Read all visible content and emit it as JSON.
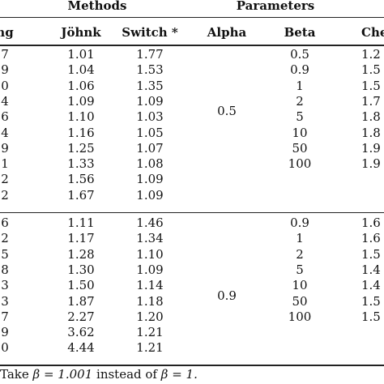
{
  "header": {
    "group_methods": "Methods",
    "group_parameters": "Parameters",
    "columns": [
      "ng",
      "Jöhnk",
      "Switch *",
      "Alpha",
      "Beta",
      "Che"
    ]
  },
  "block1": {
    "alpha": "0.5",
    "rows": [
      [
        "7",
        "1.01",
        "1.77",
        "0.5",
        "1.2"
      ],
      [
        "9",
        "1.04",
        "1.53",
        "0.9",
        "1.5"
      ],
      [
        "0",
        "1.06",
        "1.35",
        "1",
        "1.5"
      ],
      [
        "4",
        "1.09",
        "1.09",
        "2",
        "1.7"
      ],
      [
        "6",
        "1.10",
        "1.03",
        "5",
        "1.8"
      ],
      [
        "4",
        "1.16",
        "1.05",
        "10",
        "1.8"
      ],
      [
        "9",
        "1.25",
        "1.07",
        "50",
        "1.9"
      ],
      [
        "1",
        "1.33",
        "1.08",
        "100",
        "1.9"
      ],
      [
        "2",
        "1.56",
        "1.09",
        "",
        ""
      ],
      [
        "2",
        "1.67",
        "1.09",
        "",
        ""
      ]
    ]
  },
  "block2": {
    "alpha": "0.9",
    "rows": [
      [
        "6",
        "1.11",
        "1.46",
        "0.9",
        "1.6"
      ],
      [
        "2",
        "1.17",
        "1.34",
        "1",
        "1.6"
      ],
      [
        "5",
        "1.28",
        "1.10",
        "2",
        "1.5"
      ],
      [
        "8",
        "1.30",
        "1.09",
        "5",
        "1.4"
      ],
      [
        "3",
        "1.50",
        "1.14",
        "10",
        "1.4"
      ],
      [
        "3",
        "1.87",
        "1.18",
        "50",
        "1.5"
      ],
      [
        "7",
        "2.27",
        "1.20",
        "100",
        "1.5"
      ],
      [
        "9",
        "3.62",
        "1.21",
        "",
        ""
      ],
      [
        "0",
        "4.44",
        "1.21",
        "",
        ""
      ]
    ]
  },
  "footnote": {
    "prefix": "Take",
    "expr1": "β = 1.001",
    "middle": "instead of",
    "expr2": "β = 1."
  }
}
